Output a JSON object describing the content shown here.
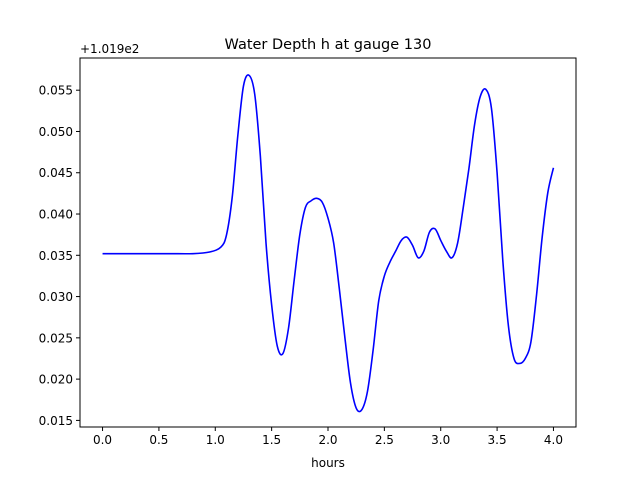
{
  "chart_data": {
    "type": "line",
    "title": "Water Depth h at gauge 130",
    "xlabel": "hours",
    "ylabel": "",
    "y_offset_label": "+1.019e2",
    "xlim": [
      -0.2,
      4.2
    ],
    "ylim": [
      0.0142,
      0.0589
    ],
    "x_ticks": [
      0.0,
      0.5,
      1.0,
      1.5,
      2.0,
      2.5,
      3.0,
      3.5,
      4.0
    ],
    "x_tick_labels": [
      "0.0",
      "0.5",
      "1.0",
      "1.5",
      "2.0",
      "2.5",
      "3.0",
      "3.5",
      "4.0"
    ],
    "y_ticks": [
      0.015,
      0.02,
      0.025,
      0.03,
      0.035,
      0.04,
      0.045,
      0.05,
      0.055
    ],
    "y_tick_labels": [
      "0.015",
      "0.020",
      "0.025",
      "0.030",
      "0.035",
      "0.040",
      "0.045",
      "0.050",
      "0.055"
    ],
    "grid": false,
    "series": [
      {
        "color": "#0000ff",
        "x": [
          0.0,
          0.2,
          0.4,
          0.6,
          0.8,
          0.95,
          1.05,
          1.1,
          1.15,
          1.2,
          1.25,
          1.3,
          1.35,
          1.4,
          1.45,
          1.5,
          1.55,
          1.6,
          1.65,
          1.7,
          1.75,
          1.8,
          1.85,
          1.9,
          1.95,
          2.0,
          2.05,
          2.1,
          2.15,
          2.2,
          2.25,
          2.3,
          2.35,
          2.4,
          2.45,
          2.5,
          2.55,
          2.6,
          2.65,
          2.7,
          2.75,
          2.8,
          2.85,
          2.9,
          2.95,
          3.0,
          3.05,
          3.1,
          3.15,
          3.2,
          3.25,
          3.3,
          3.35,
          3.4,
          3.45,
          3.5,
          3.55,
          3.6,
          3.65,
          3.7,
          3.75,
          3.8,
          3.85,
          3.9,
          3.95,
          4.0
        ],
        "y": [
          0.0352,
          0.0352,
          0.0352,
          0.0352,
          0.0352,
          0.0354,
          0.036,
          0.0375,
          0.042,
          0.0495,
          0.0555,
          0.0568,
          0.0545,
          0.047,
          0.0365,
          0.029,
          0.024,
          0.0231,
          0.0262,
          0.032,
          0.0375,
          0.0408,
          0.0416,
          0.0419,
          0.0414,
          0.0395,
          0.0365,
          0.031,
          0.025,
          0.0195,
          0.0165,
          0.0163,
          0.0185,
          0.0235,
          0.0295,
          0.0325,
          0.0342,
          0.0355,
          0.0368,
          0.0372,
          0.0362,
          0.0347,
          0.0355,
          0.0378,
          0.0382,
          0.0368,
          0.0355,
          0.0347,
          0.0365,
          0.0408,
          0.0455,
          0.0508,
          0.0542,
          0.0551,
          0.0528,
          0.045,
          0.0345,
          0.0265,
          0.0225,
          0.0219,
          0.0225,
          0.0245,
          0.0302,
          0.0372,
          0.0426,
          0.0456
        ]
      }
    ]
  }
}
